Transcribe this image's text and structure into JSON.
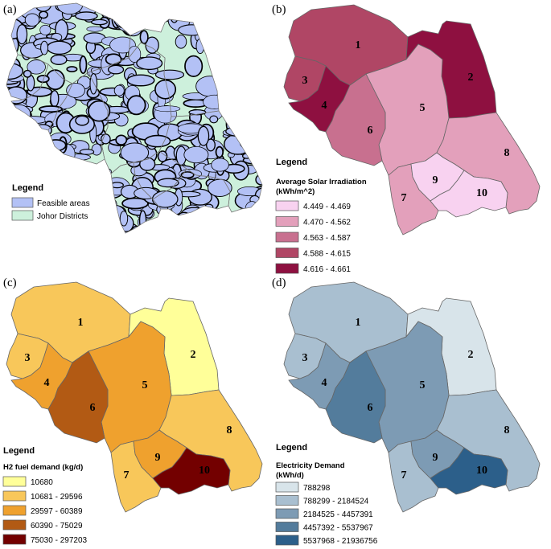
{
  "panels": {
    "a": {
      "label": "(a)",
      "legend_title": "Legend",
      "legend_items": [
        {
          "text": "Feasible areas",
          "color": "#b3c1f5"
        },
        {
          "text": "Johor Districts",
          "color": "#cdf0dc"
        }
      ]
    },
    "b": {
      "label": "(b)",
      "legend_title": "Legend",
      "legend_subtitle_1": "Average Solar Irradiation",
      "legend_subtitle_2": "(kWh/m^2)",
      "legend_items": [
        {
          "text": "4.449 - 4.469",
          "color": "#f8d2f0"
        },
        {
          "text": "4.470 - 4.562",
          "color": "#e3a0bb"
        },
        {
          "text": "4.563 - 4.587",
          "color": "#c8708f"
        },
        {
          "text": "4.588 - 4.615",
          "color": "#b04665"
        },
        {
          "text": "4.616 - 4.661",
          "color": "#8e1040"
        }
      ],
      "district_class": {
        "1": 3,
        "2": 4,
        "3": 3,
        "4": 4,
        "5": 1,
        "6": 2,
        "7": 1,
        "8": 1,
        "9": 0,
        "10": 0
      }
    },
    "c": {
      "label": "(c)",
      "legend_title": "Legend",
      "legend_subtitle_1": "H2 fuel demand (kg/d)",
      "legend_items": [
        {
          "text": "10680",
          "color": "#ffff99"
        },
        {
          "text": "10681 - 29596",
          "color": "#f8c75a"
        },
        {
          "text": "29597 - 60389",
          "color": "#efa12e"
        },
        {
          "text": "60390 - 75029",
          "color": "#b25a14"
        },
        {
          "text": "75030 - 297203",
          "color": "#730000"
        }
      ],
      "district_class": {
        "1": 1,
        "2": 0,
        "3": 1,
        "4": 2,
        "5": 2,
        "6": 3,
        "7": 1,
        "8": 1,
        "9": 2,
        "10": 4
      }
    },
    "d": {
      "label": "(d)",
      "legend_title": "Legend",
      "legend_subtitle_1": "Electricity Demand",
      "legend_subtitle_2": "(kWh/d)",
      "legend_items": [
        {
          "text": "788298",
          "color": "#d8e4ea"
        },
        {
          "text": "788299 - 2184524",
          "color": "#a9bfd0"
        },
        {
          "text": "2184525 - 4457391",
          "color": "#7d9bb4"
        },
        {
          "text": "4457392 - 5537967",
          "color": "#537c9c"
        },
        {
          "text": "5537968 - 21936756",
          "color": "#2c5f8a"
        }
      ],
      "district_class": {
        "1": 1,
        "2": 0,
        "3": 1,
        "4": 2,
        "5": 2,
        "6": 3,
        "7": 1,
        "8": 1,
        "9": 2,
        "10": 4
      }
    }
  },
  "district_labels": [
    "1",
    "2",
    "3",
    "4",
    "5",
    "6",
    "7",
    "8",
    "9",
    "10"
  ],
  "panel_a_colors": {
    "land": "#cdf0dc",
    "feasible": "#b3c1f5",
    "boundary": "#000000"
  }
}
